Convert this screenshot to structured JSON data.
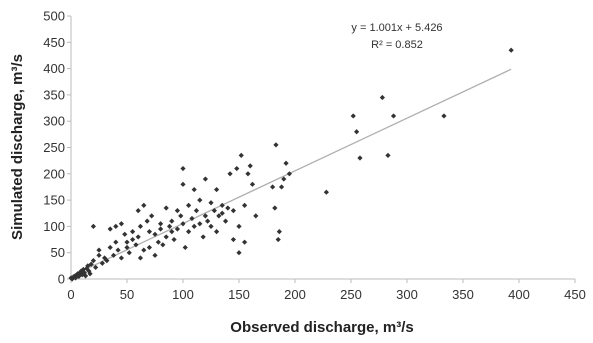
{
  "colors": {
    "points": "#333333",
    "trendline": "#b0b0b0",
    "axis": "#bbbbbb",
    "text": "#333333"
  },
  "chart_data": {
    "type": "scatter",
    "xlabel": "Observed discharge, m³/s",
    "ylabel": "Simulated discharge, m³/s",
    "xlim": [
      0,
      450
    ],
    "ylim": [
      0,
      500
    ],
    "xticks": [
      0,
      50,
      100,
      150,
      200,
      250,
      300,
      350,
      400,
      450
    ],
    "yticks": [
      0,
      50,
      100,
      150,
      200,
      250,
      300,
      350,
      400,
      450,
      500
    ],
    "grid": false,
    "legend": "none",
    "annotations": {
      "equation": "y = 1.001x + 5.426",
      "r_squared": "R² = 0.852"
    },
    "trendline": {
      "slope": 1.001,
      "intercept": 5.426,
      "x_range": [
        0,
        393
      ]
    },
    "points": [
      [
        0,
        2
      ],
      [
        1,
        0
      ],
      [
        2,
        3
      ],
      [
        3,
        5
      ],
      [
        4,
        2
      ],
      [
        5,
        8
      ],
      [
        6,
        10
      ],
      [
        7,
        5
      ],
      [
        8,
        12
      ],
      [
        9,
        15
      ],
      [
        10,
        8
      ],
      [
        11,
        18
      ],
      [
        12,
        12
      ],
      [
        13,
        6
      ],
      [
        14,
        20
      ],
      [
        15,
        25
      ],
      [
        16,
        15
      ],
      [
        17,
        10
      ],
      [
        18,
        28
      ],
      [
        20,
        35
      ],
      [
        20,
        100
      ],
      [
        22,
        22
      ],
      [
        25,
        45
      ],
      [
        25,
        55
      ],
      [
        28,
        30
      ],
      [
        30,
        40
      ],
      [
        32,
        35
      ],
      [
        35,
        95
      ],
      [
        35,
        60
      ],
      [
        38,
        45
      ],
      [
        40,
        100
      ],
      [
        40,
        70
      ],
      [
        42,
        55
      ],
      [
        45,
        105
      ],
      [
        45,
        40
      ],
      [
        48,
        85
      ],
      [
        50,
        70
      ],
      [
        50,
        60
      ],
      [
        52,
        50
      ],
      [
        55,
        75
      ],
      [
        55,
        90
      ],
      [
        58,
        65
      ],
      [
        60,
        130
      ],
      [
        60,
        80
      ],
      [
        62,
        100
      ],
      [
        62,
        40
      ],
      [
        65,
        55
      ],
      [
        65,
        140
      ],
      [
        68,
        110
      ],
      [
        70,
        90
      ],
      [
        70,
        60
      ],
      [
        72,
        120
      ],
      [
        75,
        85
      ],
      [
        75,
        45
      ],
      [
        78,
        70
      ],
      [
        80,
        95
      ],
      [
        80,
        105
      ],
      [
        82,
        65
      ],
      [
        85,
        80
      ],
      [
        85,
        135
      ],
      [
        88,
        100
      ],
      [
        90,
        90
      ],
      [
        90,
        110
      ],
      [
        92,
        75
      ],
      [
        95,
        95
      ],
      [
        95,
        130
      ],
      [
        98,
        120
      ],
      [
        100,
        180
      ],
      [
        100,
        105
      ],
      [
        100,
        210
      ],
      [
        102,
        60
      ],
      [
        105,
        90
      ],
      [
        105,
        140
      ],
      [
        108,
        115
      ],
      [
        110,
        100
      ],
      [
        110,
        170
      ],
      [
        112,
        130
      ],
      [
        115,
        150
      ],
      [
        115,
        105
      ],
      [
        118,
        80
      ],
      [
        120,
        120
      ],
      [
        120,
        190
      ],
      [
        122,
        110
      ],
      [
        125,
        145
      ],
      [
        125,
        100
      ],
      [
        128,
        130
      ],
      [
        130,
        90
      ],
      [
        130,
        170
      ],
      [
        132,
        120
      ],
      [
        135,
        140
      ],
      [
        135,
        125
      ],
      [
        138,
        110
      ],
      [
        140,
        135
      ],
      [
        142,
        200
      ],
      [
        145,
        130
      ],
      [
        145,
        75
      ],
      [
        148,
        210
      ],
      [
        150,
        100
      ],
      [
        150,
        50
      ],
      [
        152,
        235
      ],
      [
        155,
        140
      ],
      [
        155,
        70
      ],
      [
        158,
        200
      ],
      [
        160,
        215
      ],
      [
        162,
        180
      ],
      [
        165,
        120
      ],
      [
        180,
        175
      ],
      [
        182,
        135
      ],
      [
        183,
        255
      ],
      [
        185,
        75
      ],
      [
        186,
        90
      ],
      [
        188,
        175
      ],
      [
        190,
        190
      ],
      [
        192,
        220
      ],
      [
        195,
        200
      ],
      [
        228,
        165
      ],
      [
        252,
        310
      ],
      [
        255,
        280
      ],
      [
        258,
        230
      ],
      [
        278,
        345
      ],
      [
        283,
        235
      ],
      [
        288,
        310
      ],
      [
        333,
        310
      ],
      [
        393,
        435
      ]
    ]
  }
}
